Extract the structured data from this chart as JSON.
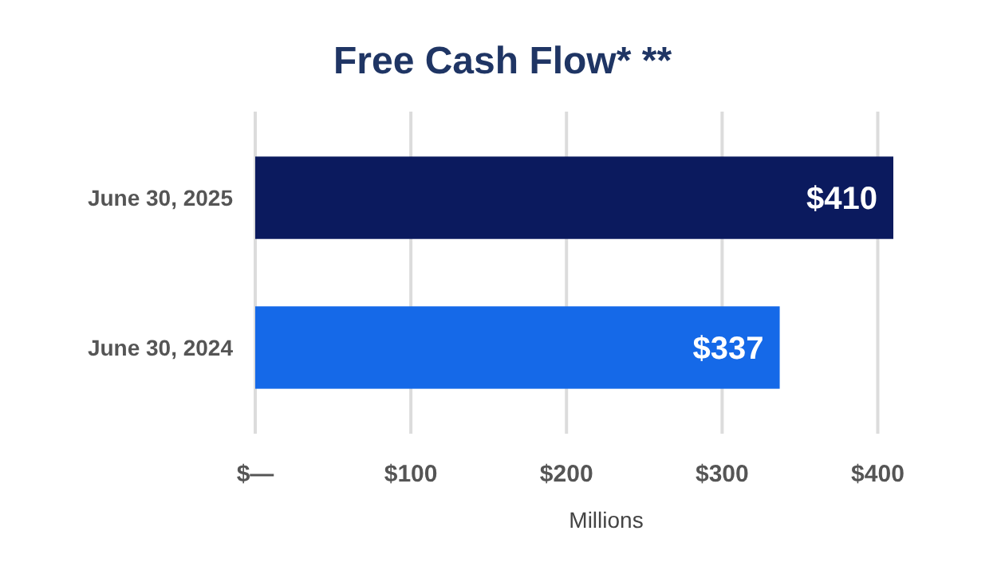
{
  "chart_data": {
    "type": "bar",
    "title": "Free Cash Flow* **",
    "orientation": "horizontal",
    "xlabel": "Millions",
    "categories": [
      "June 30, 2025",
      "June 30, 2024"
    ],
    "values": [
      410,
      337
    ],
    "colors": [
      "#0b1a5e",
      "#1569e8"
    ],
    "value_labels": [
      "$410",
      "$337"
    ],
    "xlim": [
      0,
      410
    ],
    "xticks": [
      {
        "value": 0,
        "label": "$—"
      },
      {
        "value": 100,
        "label": "$100"
      },
      {
        "value": 200,
        "label": "$200"
      },
      {
        "value": 300,
        "label": "$300"
      },
      {
        "value": 400,
        "label": "$400"
      }
    ],
    "grid": "x"
  }
}
